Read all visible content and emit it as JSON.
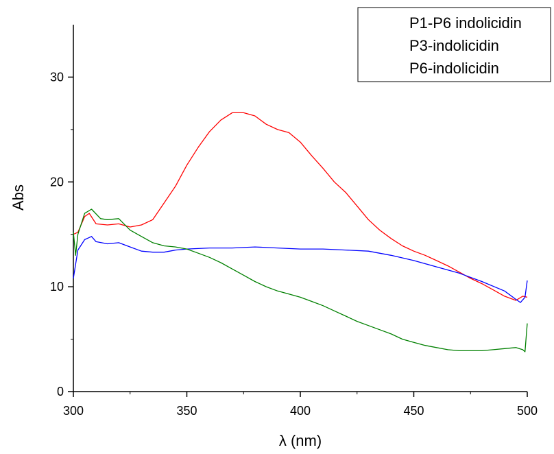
{
  "chart_data": {
    "type": "line",
    "title": "",
    "xlabel": "λ (nm)",
    "ylabel": "Abs",
    "xlim": [
      300,
      500
    ],
    "ylim": [
      0,
      35
    ],
    "x_ticks": [
      300,
      350,
      400,
      450,
      500
    ],
    "y_ticks": [
      0,
      10,
      20,
      30
    ],
    "grid": false,
    "legend_position": "top-right",
    "series": [
      {
        "name": "P1-P6 indolicidin",
        "color": "#000000",
        "x": [],
        "y": []
      },
      {
        "name": "P3-indolicidin",
        "color": "#ff0000",
        "x": [
          300,
          302,
          305,
          307,
          310,
          315,
          320,
          325,
          330,
          335,
          340,
          345,
          350,
          355,
          360,
          365,
          370,
          375,
          380,
          385,
          390,
          395,
          400,
          405,
          410,
          415,
          420,
          425,
          430,
          435,
          440,
          445,
          450,
          455,
          460,
          465,
          470,
          475,
          480,
          485,
          490,
          495,
          498,
          500
        ],
        "y": [
          15.0,
          15.2,
          16.7,
          17.0,
          16.0,
          15.9,
          16.0,
          15.7,
          15.9,
          16.4,
          18.0,
          19.6,
          21.6,
          23.3,
          24.8,
          25.9,
          26.6,
          26.6,
          26.3,
          25.5,
          25.0,
          24.7,
          23.8,
          22.5,
          21.3,
          20.0,
          19.0,
          17.7,
          16.4,
          15.4,
          14.6,
          13.9,
          13.4,
          13.0,
          12.5,
          12.0,
          11.4,
          10.8,
          10.3,
          9.7,
          9.1,
          8.7,
          9.1,
          9.0
        ]
      },
      {
        "name": "P6-indolicidin",
        "color": "#0000ff",
        "x": [
          300,
          302,
          305,
          308,
          310,
          315,
          320,
          325,
          330,
          335,
          340,
          345,
          350,
          360,
          370,
          380,
          390,
          400,
          410,
          420,
          430,
          440,
          450,
          460,
          470,
          480,
          490,
          495,
          497,
          499,
          500
        ],
        "y": [
          10.8,
          13.5,
          14.5,
          14.8,
          14.3,
          14.1,
          14.2,
          13.8,
          13.4,
          13.3,
          13.3,
          13.5,
          13.6,
          13.7,
          13.7,
          13.8,
          13.7,
          13.6,
          13.6,
          13.5,
          13.4,
          13.0,
          12.5,
          11.9,
          11.3,
          10.5,
          9.6,
          8.8,
          8.5,
          9.0,
          10.6
        ]
      },
      {
        "name": "",
        "color": "#008000",
        "x": [
          300,
          301,
          302,
          305,
          308,
          312,
          315,
          320,
          325,
          330,
          335,
          340,
          345,
          350,
          355,
          360,
          365,
          370,
          375,
          380,
          385,
          390,
          395,
          400,
          405,
          410,
          415,
          420,
          425,
          430,
          435,
          440,
          445,
          450,
          455,
          460,
          465,
          470,
          475,
          480,
          485,
          490,
          495,
          498,
          499,
          500
        ],
        "y": [
          15.2,
          13.0,
          15.0,
          17.0,
          17.4,
          16.5,
          16.4,
          16.5,
          15.4,
          14.8,
          14.2,
          13.9,
          13.8,
          13.6,
          13.2,
          12.8,
          12.3,
          11.7,
          11.1,
          10.5,
          10.0,
          9.6,
          9.3,
          9.0,
          8.6,
          8.2,
          7.7,
          7.2,
          6.7,
          6.3,
          5.9,
          5.5,
          5.0,
          4.7,
          4.4,
          4.2,
          4.0,
          3.9,
          3.9,
          3.9,
          4.0,
          4.1,
          4.2,
          4.0,
          3.8,
          6.5
        ]
      }
    ]
  }
}
